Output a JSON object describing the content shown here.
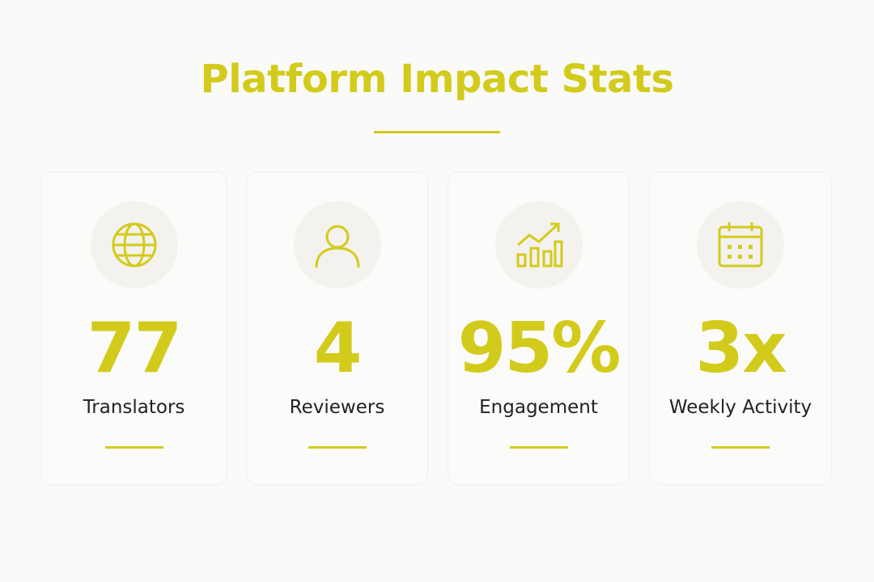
{
  "header": {
    "title": "Platform Impact Stats"
  },
  "stats": [
    {
      "value": "77",
      "label": "Translators"
    },
    {
      "value": "4",
      "label": "Reviewers"
    },
    {
      "value": "95%",
      "label": "Engagement"
    },
    {
      "value": "3x",
      "label": "Weekly Activity"
    }
  ]
}
